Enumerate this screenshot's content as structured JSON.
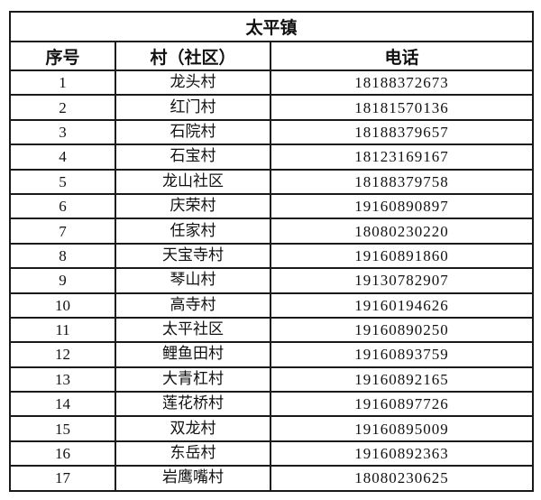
{
  "table": {
    "title": "太平镇",
    "headers": [
      "序号",
      "村（社区）",
      "电话"
    ],
    "rows": [
      {
        "no": "1",
        "name": "龙头村",
        "phone": "18188372673"
      },
      {
        "no": "2",
        "name": "红门村",
        "phone": "18181570136"
      },
      {
        "no": "3",
        "name": "石院村",
        "phone": "18188379657"
      },
      {
        "no": "4",
        "name": "石宝村",
        "phone": "18123169167"
      },
      {
        "no": "5",
        "name": "龙山社区",
        "phone": "18188379758"
      },
      {
        "no": "6",
        "name": "庆荣村",
        "phone": "19160890897"
      },
      {
        "no": "7",
        "name": "任家村",
        "phone": "18080230220"
      },
      {
        "no": "8",
        "name": "天宝寺村",
        "phone": "19160891860"
      },
      {
        "no": "9",
        "name": "琴山村",
        "phone": "19130782907"
      },
      {
        "no": "10",
        "name": "高寺村",
        "phone": "19160194626"
      },
      {
        "no": "11",
        "name": "太平社区",
        "phone": "19160890250"
      },
      {
        "no": "12",
        "name": "鲤鱼田村",
        "phone": "19160893759"
      },
      {
        "no": "13",
        "name": "大青杠村",
        "phone": "19160892165"
      },
      {
        "no": "14",
        "name": "莲花桥村",
        "phone": "19160897726"
      },
      {
        "no": "15",
        "name": "双龙村",
        "phone": "19160895009"
      },
      {
        "no": "16",
        "name": "东岳村",
        "phone": "19160892363"
      },
      {
        "no": "17",
        "name": "岩鹰嘴村",
        "phone": "18080230625"
      }
    ]
  }
}
